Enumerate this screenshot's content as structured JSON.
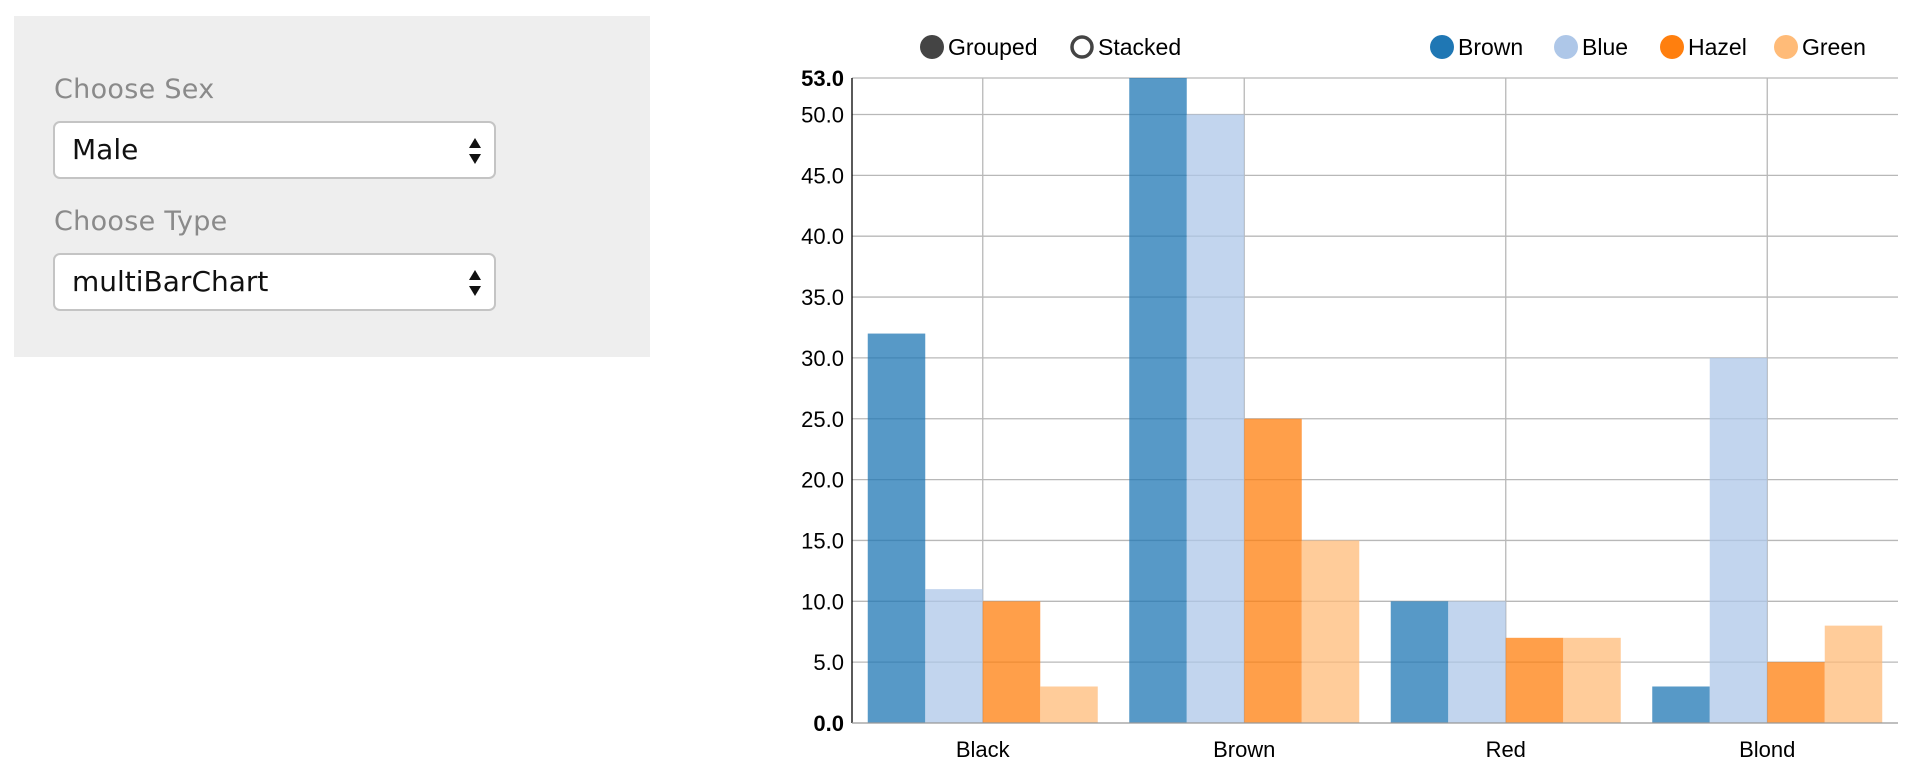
{
  "controls": {
    "sex": {
      "label": "Choose Sex",
      "value": "Male"
    },
    "type": {
      "label": "Choose Type",
      "value": "multiBarChart"
    }
  },
  "chart_data": {
    "type": "bar",
    "mode_options": [
      {
        "label": "Grouped",
        "selected": true
      },
      {
        "label": "Stacked",
        "selected": false
      }
    ],
    "categories": [
      "Black",
      "Brown",
      "Red",
      "Blond"
    ],
    "series": [
      {
        "name": "Brown",
        "color": "#1f77b4",
        "values": [
          32,
          53,
          10,
          3
        ]
      },
      {
        "name": "Blue",
        "color": "#aec7e8",
        "values": [
          11,
          50,
          10,
          30
        ]
      },
      {
        "name": "Hazel",
        "color": "#ff7f0e",
        "values": [
          10,
          25,
          7,
          5
        ]
      },
      {
        "name": "Green",
        "color": "#ffbb78",
        "values": [
          3,
          15,
          7,
          8
        ]
      }
    ],
    "ylim": [
      0,
      53
    ],
    "yticks": [
      "0.0",
      "5.0",
      "10.0",
      "15.0",
      "20.0",
      "25.0",
      "30.0",
      "35.0",
      "40.0",
      "45.0",
      "50.0",
      "53.0"
    ],
    "legend_position": "top-right",
    "grid": true,
    "xlabel": "",
    "ylabel": ""
  }
}
